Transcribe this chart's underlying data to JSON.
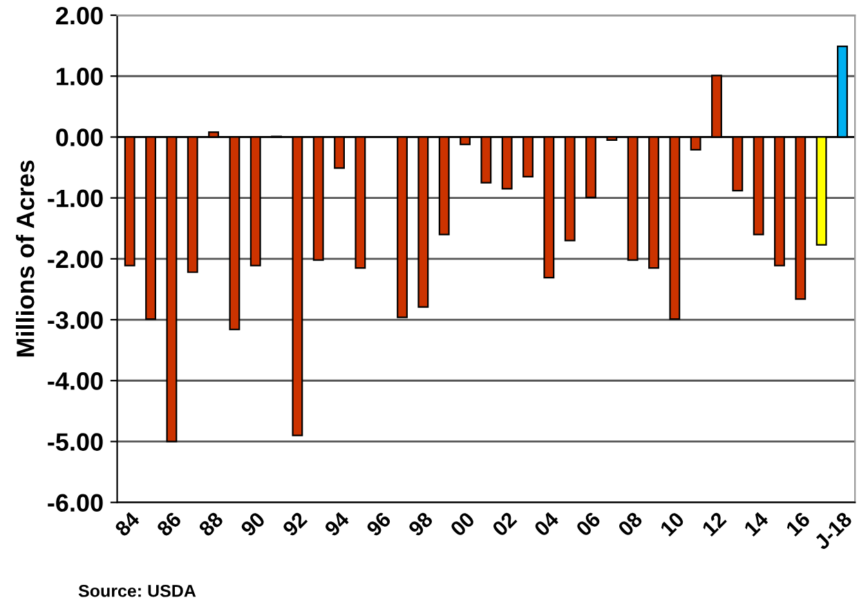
{
  "chart_data": {
    "type": "bar",
    "ylabel": "Millions of Acres",
    "categories": [
      "84",
      null,
      "86",
      null,
      "88",
      null,
      "90",
      null,
      "92",
      null,
      "94",
      null,
      "96",
      null,
      "98",
      null,
      "00",
      null,
      "02",
      null,
      "04",
      null,
      "06",
      null,
      "08",
      null,
      "10",
      null,
      "12",
      null,
      "14",
      null,
      "16",
      null,
      "J-18"
    ],
    "values": [
      -2.11,
      -2.99,
      -5.0,
      -2.22,
      0.08,
      -3.16,
      -2.11,
      0.01,
      -4.9,
      -2.02,
      -0.51,
      -2.15,
      null,
      -2.96,
      -2.79,
      -1.6,
      -0.12,
      -0.75,
      -0.85,
      -0.65,
      -2.31,
      -1.7,
      -0.99,
      -0.05,
      -2.02,
      -2.15,
      -2.99,
      -0.21,
      1.01,
      -0.88,
      -1.6,
      -2.11,
      -2.66,
      -1.77,
      1.49
    ],
    "colors": [
      "#cc3300",
      "#cc3300",
      "#cc3300",
      "#cc3300",
      "#cc3300",
      "#cc3300",
      "#cc3300",
      "#cc3300",
      "#cc3300",
      "#cc3300",
      "#cc3300",
      "#cc3300",
      "#cc3300",
      "#cc3300",
      "#cc3300",
      "#cc3300",
      "#cc3300",
      "#cc3300",
      "#cc3300",
      "#cc3300",
      "#cc3300",
      "#cc3300",
      "#cc3300",
      "#cc3300",
      "#cc3300",
      "#cc3300",
      "#cc3300",
      "#cc3300",
      "#cc3300",
      "#cc3300",
      "#cc3300",
      "#cc3300",
      "#cc3300",
      "#ffff00",
      "#00b0f0"
    ],
    "ylim": [
      -6,
      2
    ],
    "yticks": [
      {
        "value": -6,
        "label": "-6.00"
      },
      {
        "value": -5,
        "label": "-5.00"
      },
      {
        "value": -4,
        "label": "-4.00"
      },
      {
        "value": -3,
        "label": "-3.00"
      },
      {
        "value": -2,
        "label": "-2.00"
      },
      {
        "value": -1,
        "label": "-1.00"
      },
      {
        "value": 0,
        "label": "0.00"
      },
      {
        "value": 1,
        "label": "1.00"
      },
      {
        "value": 2,
        "label": "2.00"
      }
    ],
    "grid": "y",
    "annotations": [
      "Source: USDA"
    ]
  }
}
